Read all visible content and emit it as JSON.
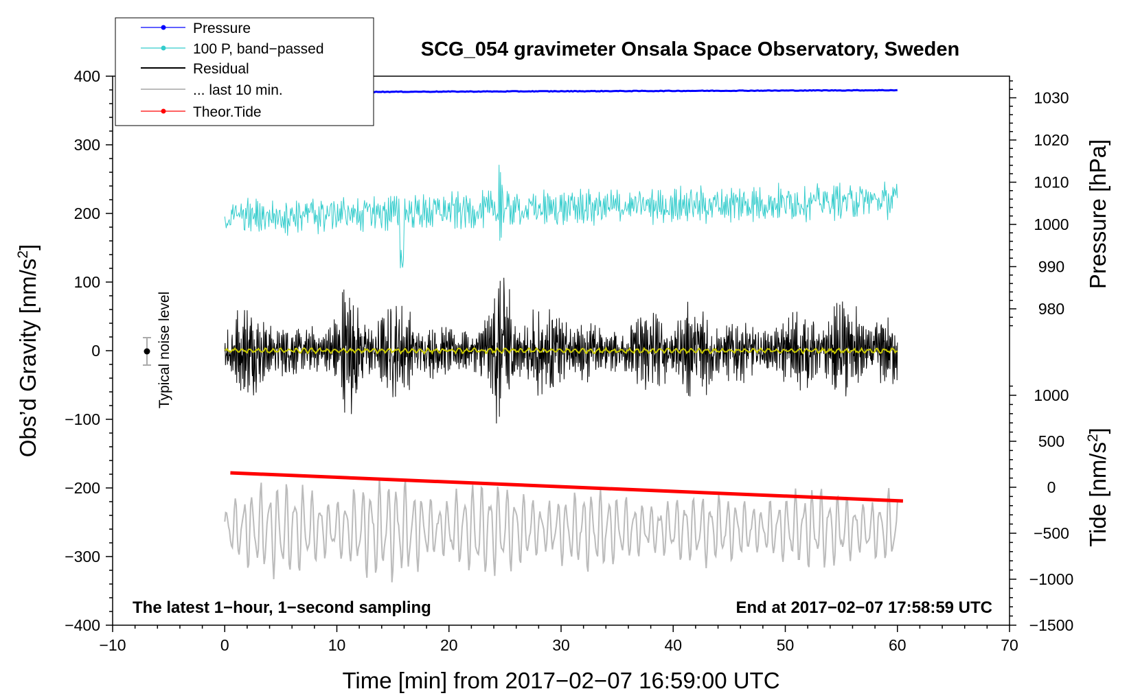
{
  "chart_data": {
    "type": "line",
    "title": "SCG_054 gravimeter Onsala Space Observatory, Sweden",
    "xlabel": "Time [min] from 2017−02−07 16:59:00 UTC",
    "ylabel": "Obs’d Gravity [nm/s",
    "ylabel_sup": "2",
    "ylabel_close": "]",
    "xlim": [
      -10,
      70
    ],
    "ylim": [
      -400,
      400
    ],
    "xticks": [
      -10,
      0,
      10,
      20,
      30,
      40,
      50,
      60,
      70
    ],
    "xtick_labels": [
      "−10",
      "0",
      "10",
      "20",
      "30",
      "40",
      "50",
      "60",
      "70"
    ],
    "yticks": [
      -400,
      -300,
      -200,
      -100,
      0,
      100,
      200,
      300,
      400
    ],
    "ytick_labels": [
      "−400",
      "−300",
      "−200",
      "−100",
      "0",
      "100",
      "200",
      "300",
      "400"
    ],
    "pressure_axis": {
      "label": "Pressure [hPa]",
      "ticks": [
        980,
        990,
        1000,
        1010,
        1020,
        1030
      ],
      "tick_labels": [
        "980",
        "990",
        "1000",
        "1010",
        "1020",
        "1030"
      ]
    },
    "tide_axis": {
      "label": "Tide [nm/s",
      "label_sup": "2",
      "label_close": "]",
      "ticks": [
        -1500,
        -1000,
        -500,
        0,
        500,
        1000
      ],
      "tick_labels": [
        "−1500",
        "−1000",
        "−500",
        "0",
        "500",
        "1000"
      ]
    },
    "series": [
      {
        "name": "Pressure",
        "color": "#0000ff",
        "x_range": [
          0,
          60
        ],
        "level_hpa": [
          1031.3,
          1031.8
        ]
      },
      {
        "name": "100 P, band−passed",
        "color": "#33cccc",
        "x_range": [
          0,
          60
        ],
        "center": [
          195,
          220
        ],
        "amplitude": 30
      },
      {
        "name": "Residual",
        "color": "#000000",
        "x_range": [
          0,
          60
        ],
        "center": 0,
        "amplitude": 60
      },
      {
        "name": "... last 10 min.",
        "color": "#bbbbbb",
        "x_range": [
          0,
          60
        ],
        "center": -260,
        "amplitude": 70
      },
      {
        "name": "Theor.Tide",
        "color": "#ff0000",
        "x_range": [
          0.5,
          60.5
        ],
        "values": [
          -178,
          -219
        ]
      }
    ],
    "filtered_residual": {
      "color": "#cccc00",
      "center": 0,
      "amplitude": 4
    },
    "noise_level": {
      "label": "Typical noise level",
      "x": -7,
      "value": 0,
      "error": 20
    },
    "annotation_left": "The latest 1−hour, 1−second sampling",
    "annotation_right": "End at 2017−02−07 17:58:59 UTC",
    "legend": [
      "Pressure",
      "100 P, band−passed",
      "Residual",
      "... last 10 min.",
      "Theor.Tide"
    ]
  },
  "colors": {
    "pressure": "#0000ff",
    "bandpassed": "#33cccc",
    "residual": "#000000",
    "last10": "#bbbbbb",
    "tide": "#ff0000",
    "filtered": "#cccc00"
  }
}
